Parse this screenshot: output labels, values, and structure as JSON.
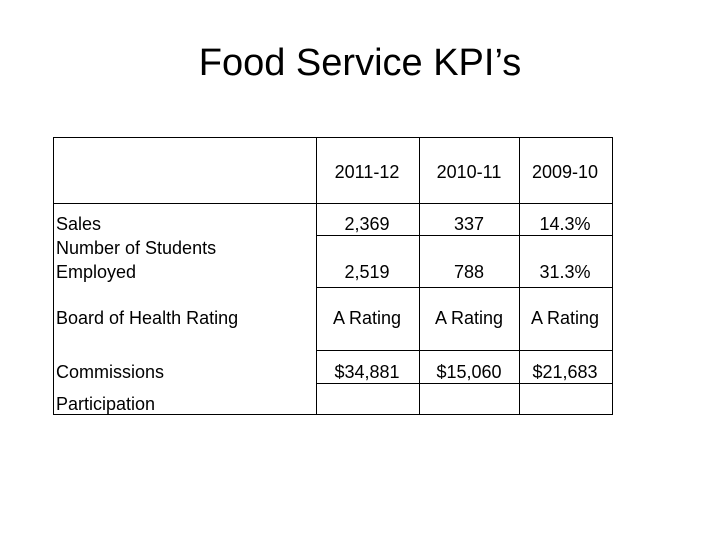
{
  "title": "Food Service KPI’s",
  "table": {
    "columns": [
      "2011-12",
      "2010-11",
      "2009-10"
    ],
    "rows": [
      {
        "label": "Sales",
        "values": [
          "2,369",
          "337",
          "14.3%"
        ]
      },
      {
        "label": "Number of Students Employed",
        "values": [
          "2,519",
          "788",
          "31.3%"
        ]
      },
      {
        "label": "Board of Health Rating",
        "values": [
          "A Rating",
          "A Rating",
          "A Rating"
        ]
      },
      {
        "label": "Commissions",
        "values": [
          "$34,881",
          "$15,060",
          "$21,683"
        ]
      },
      {
        "label": "Participation",
        "values": []
      }
    ]
  }
}
